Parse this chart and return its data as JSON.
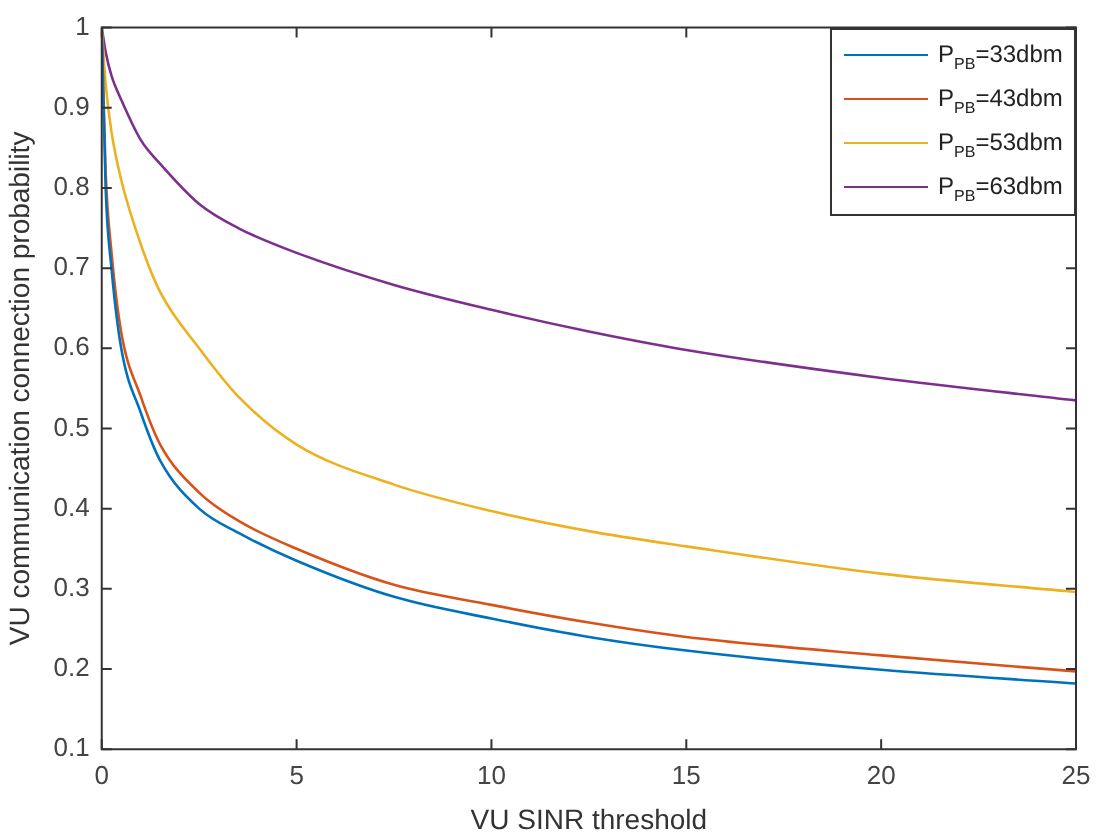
{
  "chart_data": {
    "type": "line",
    "xlabel": "VU SINR threshold",
    "ylabel": "VU communication connection probability",
    "x": [
      0,
      0.1,
      0.25,
      0.5,
      1,
      1.5,
      2.5,
      3.5,
      5,
      7.5,
      10,
      12.5,
      15,
      20,
      25
    ],
    "xlim": [
      0,
      25
    ],
    "xticks": [
      0,
      5,
      10,
      15,
      20,
      25
    ],
    "ylim": [
      0.1,
      1
    ],
    "yticks": [
      0.1,
      0.2,
      0.3,
      0.4,
      0.5,
      0.6,
      0.7,
      0.8,
      0.9,
      1
    ],
    "grid": false,
    "legend": "top right",
    "marker": "none",
    "line_style": "solid",
    "series": [
      {
        "name": "P$_{PB}$=33dbm",
        "color": "#0072bd",
        "values": [
          1,
          0.8,
          0.7,
          0.6,
          0.52,
          0.46,
          0.4,
          0.37,
          0.335,
          0.29,
          0.263,
          0.24,
          0.223,
          0.199,
          0.182
        ]
      },
      {
        "name": "P$_{PB}$=43dbm",
        "color": "#d95319",
        "values": [
          1,
          0.82,
          0.72,
          0.62,
          0.54,
          0.48,
          0.42,
          0.385,
          0.35,
          0.305,
          0.28,
          0.258,
          0.24,
          0.217,
          0.197
        ]
      },
      {
        "name": "P$_{PB}$=53dbm",
        "color": "#edb120",
        "values": [
          1,
          0.93,
          0.87,
          0.81,
          0.73,
          0.67,
          0.6,
          0.54,
          0.48,
          0.43,
          0.397,
          0.372,
          0.353,
          0.319,
          0.296
        ]
      },
      {
        "name": "P$_{PB}$=63dbm",
        "color": "#7e2f8e",
        "values": [
          1,
          0.97,
          0.94,
          0.91,
          0.86,
          0.83,
          0.78,
          0.75,
          0.719,
          0.679,
          0.648,
          0.621,
          0.598,
          0.563,
          0.535
        ]
      }
    ]
  }
}
